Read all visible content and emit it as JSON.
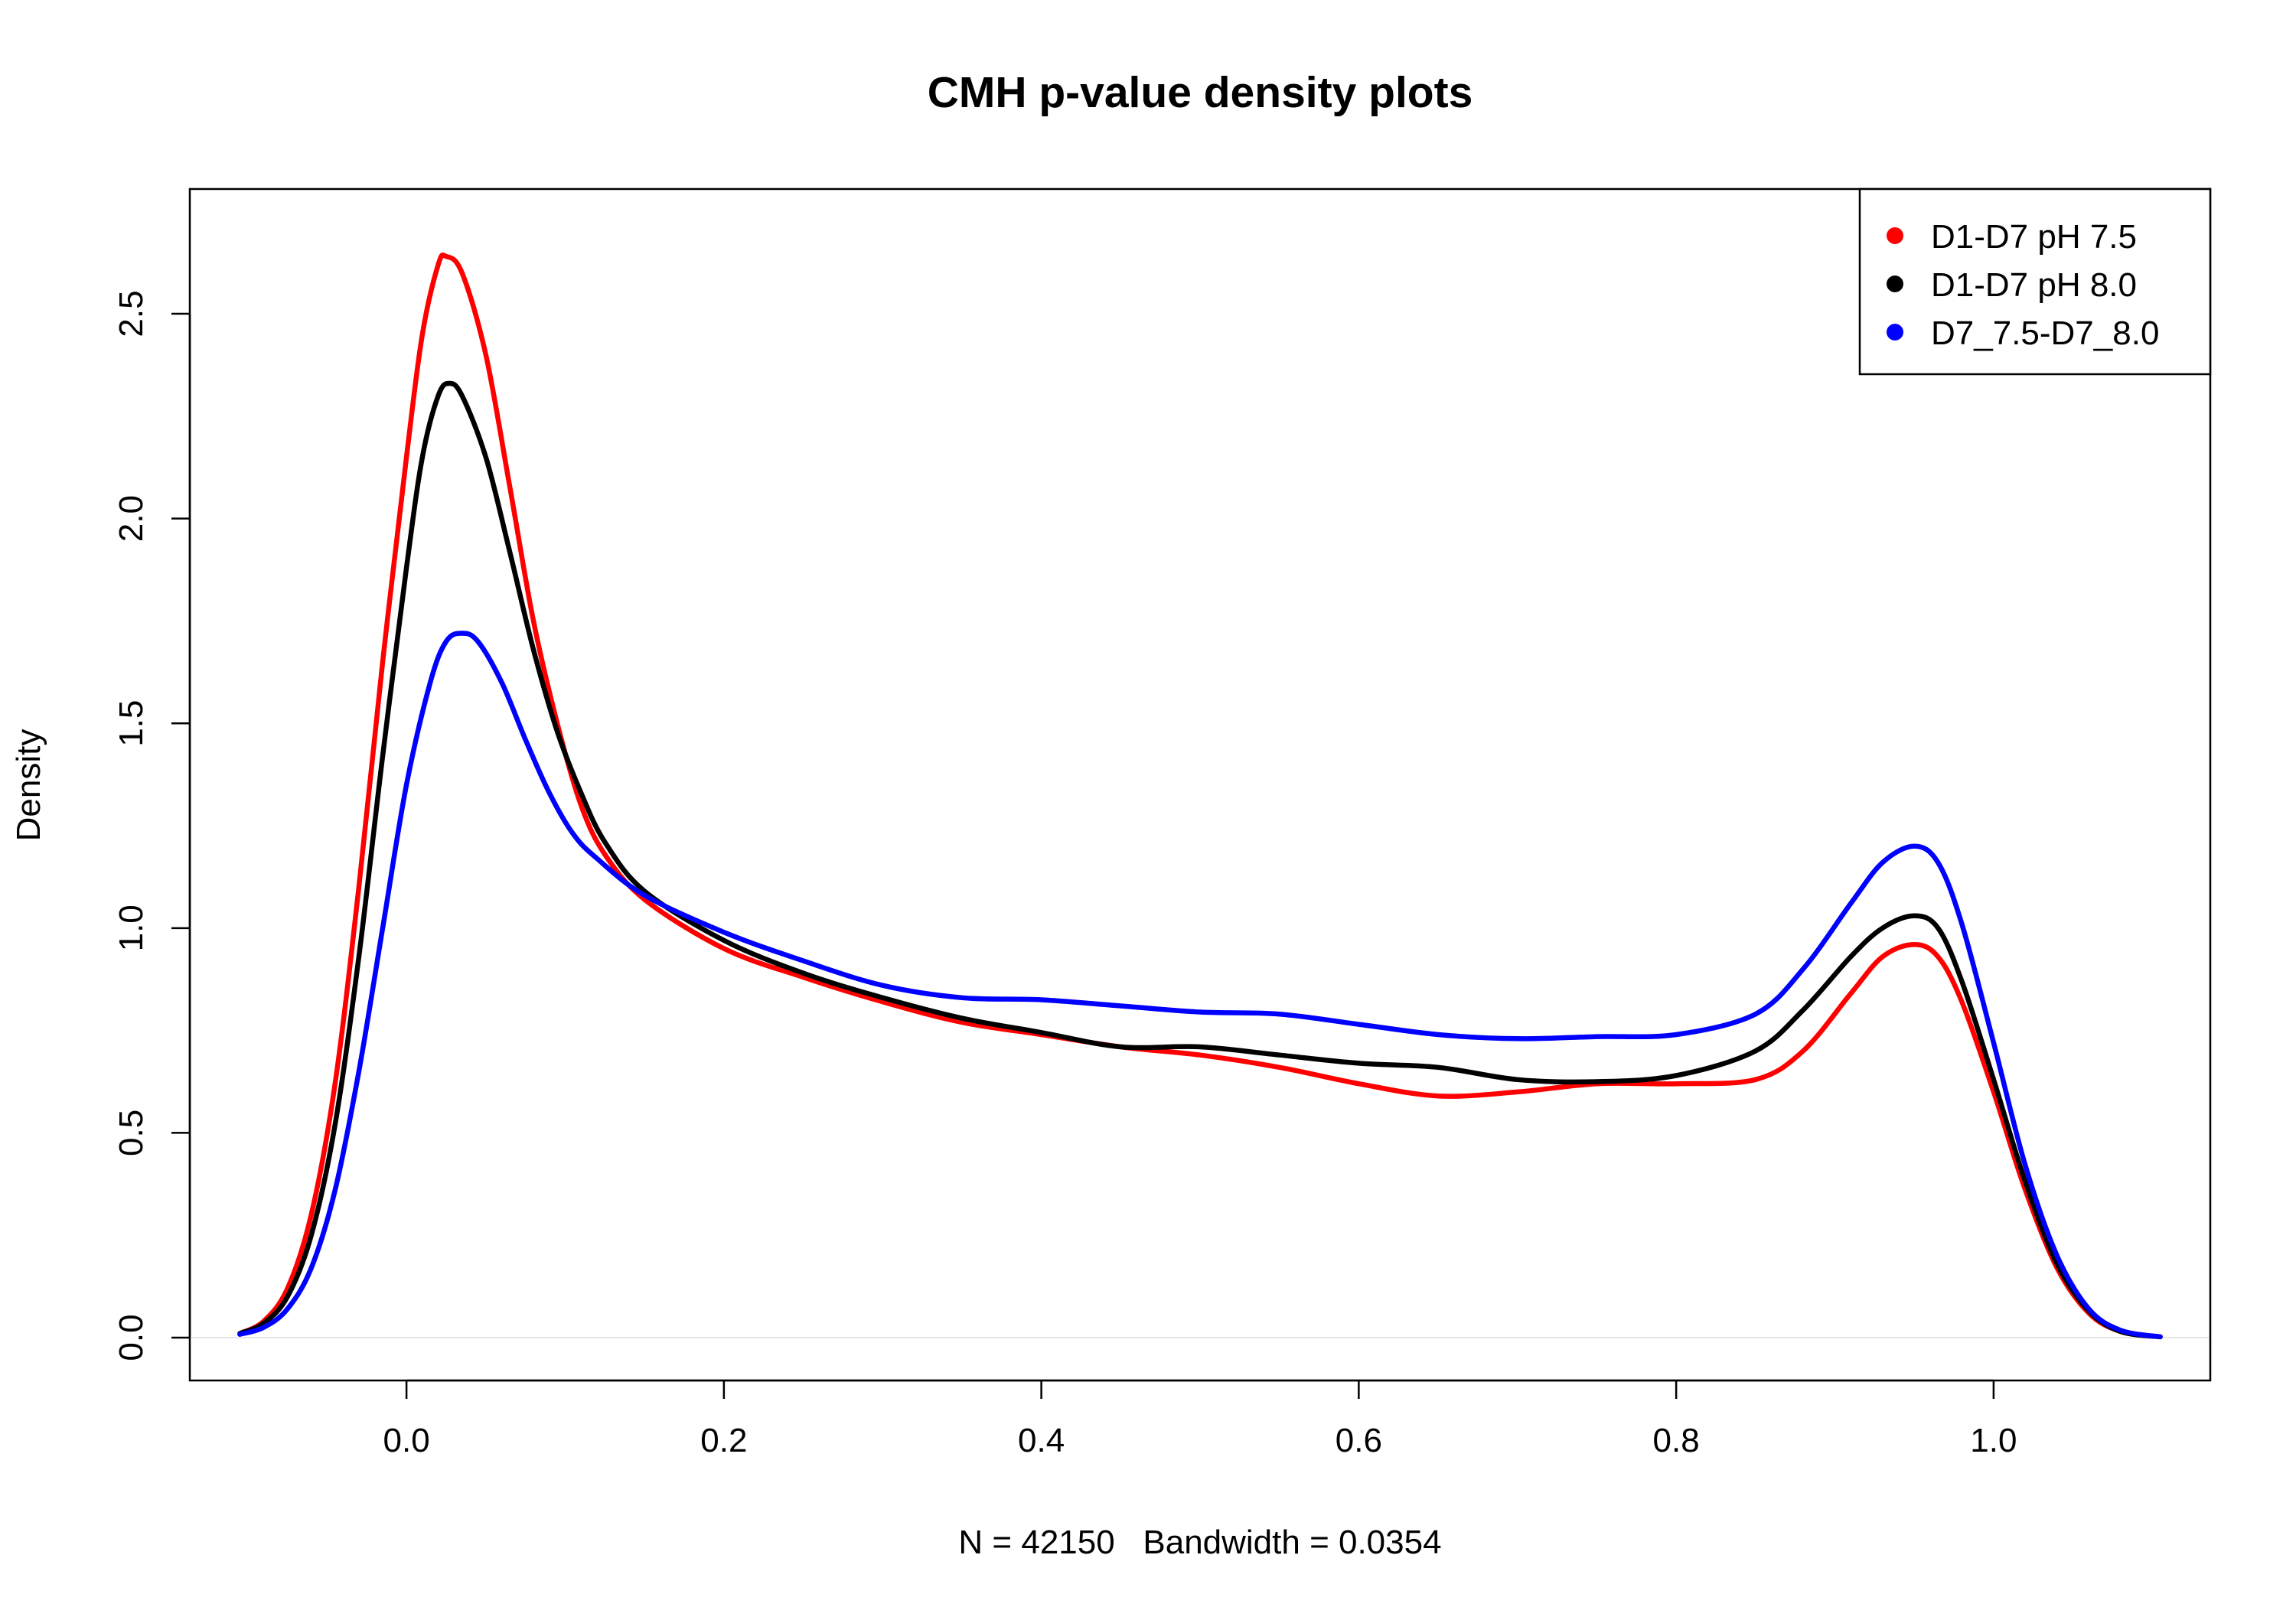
{
  "chart_data": {
    "type": "line",
    "title": "CMH p-value density plots",
    "xlabel": "N = 42150   Bandwidth = 0.0354",
    "ylabel": "Density",
    "xlim": [
      -0.11,
      1.11
    ],
    "ylim": [
      0,
      2.7
    ],
    "x_ticks": [
      0.0,
      0.2,
      0.4,
      0.6,
      0.8,
      1.0
    ],
    "x_tick_labels": [
      "0.0",
      "0.2",
      "0.4",
      "0.6",
      "0.8",
      "1.0"
    ],
    "y_ticks": [
      0.0,
      0.5,
      1.0,
      1.5,
      2.0,
      2.5
    ],
    "y_tick_labels": [
      "0.0",
      "0.5",
      "1.0",
      "1.5",
      "2.0",
      "2.5"
    ],
    "grid": false,
    "baseline_at_zero": true,
    "legend_position": "top-right",
    "series": [
      {
        "name": "D1-D7 pH 7.5",
        "color": "#ff0000",
        "points": [
          [
            -0.105,
            0.01
          ],
          [
            -0.09,
            0.04
          ],
          [
            -0.075,
            0.12
          ],
          [
            -0.06,
            0.3
          ],
          [
            -0.045,
            0.62
          ],
          [
            -0.03,
            1.1
          ],
          [
            -0.015,
            1.65
          ],
          [
            0.0,
            2.15
          ],
          [
            0.01,
            2.45
          ],
          [
            0.02,
            2.62
          ],
          [
            0.025,
            2.64
          ],
          [
            0.035,
            2.6
          ],
          [
            0.05,
            2.4
          ],
          [
            0.065,
            2.08
          ],
          [
            0.08,
            1.75
          ],
          [
            0.095,
            1.5
          ],
          [
            0.11,
            1.3
          ],
          [
            0.125,
            1.18
          ],
          [
            0.15,
            1.07
          ],
          [
            0.2,
            0.95
          ],
          [
            0.25,
            0.88
          ],
          [
            0.3,
            0.82
          ],
          [
            0.35,
            0.77
          ],
          [
            0.4,
            0.74
          ],
          [
            0.45,
            0.71
          ],
          [
            0.5,
            0.69
          ],
          [
            0.55,
            0.66
          ],
          [
            0.6,
            0.62
          ],
          [
            0.65,
            0.59
          ],
          [
            0.7,
            0.6
          ],
          [
            0.75,
            0.62
          ],
          [
            0.8,
            0.62
          ],
          [
            0.85,
            0.63
          ],
          [
            0.88,
            0.7
          ],
          [
            0.91,
            0.84
          ],
          [
            0.93,
            0.93
          ],
          [
            0.95,
            0.96
          ],
          [
            0.965,
            0.93
          ],
          [
            0.98,
            0.82
          ],
          [
            1.0,
            0.6
          ],
          [
            1.02,
            0.36
          ],
          [
            1.04,
            0.17
          ],
          [
            1.06,
            0.06
          ],
          [
            1.08,
            0.015
          ],
          [
            1.105,
            0.002
          ]
        ]
      },
      {
        "name": "D1-D7 pH 8.0",
        "color": "#000000",
        "points": [
          [
            -0.105,
            0.01
          ],
          [
            -0.09,
            0.035
          ],
          [
            -0.075,
            0.1
          ],
          [
            -0.06,
            0.25
          ],
          [
            -0.045,
            0.52
          ],
          [
            -0.03,
            0.93
          ],
          [
            -0.015,
            1.42
          ],
          [
            0.0,
            1.88
          ],
          [
            0.01,
            2.15
          ],
          [
            0.02,
            2.3
          ],
          [
            0.027,
            2.33
          ],
          [
            0.035,
            2.3
          ],
          [
            0.05,
            2.15
          ],
          [
            0.065,
            1.92
          ],
          [
            0.08,
            1.68
          ],
          [
            0.095,
            1.48
          ],
          [
            0.11,
            1.33
          ],
          [
            0.125,
            1.21
          ],
          [
            0.15,
            1.09
          ],
          [
            0.2,
            0.97
          ],
          [
            0.25,
            0.89
          ],
          [
            0.3,
            0.83
          ],
          [
            0.35,
            0.78
          ],
          [
            0.4,
            0.745
          ],
          [
            0.45,
            0.71
          ],
          [
            0.5,
            0.71
          ],
          [
            0.55,
            0.69
          ],
          [
            0.6,
            0.67
          ],
          [
            0.65,
            0.66
          ],
          [
            0.7,
            0.63
          ],
          [
            0.75,
            0.625
          ],
          [
            0.8,
            0.64
          ],
          [
            0.85,
            0.7
          ],
          [
            0.88,
            0.8
          ],
          [
            0.91,
            0.93
          ],
          [
            0.93,
            1.0
          ],
          [
            0.95,
            1.03
          ],
          [
            0.965,
            1.0
          ],
          [
            0.98,
            0.87
          ],
          [
            1.0,
            0.63
          ],
          [
            1.02,
            0.38
          ],
          [
            1.04,
            0.18
          ],
          [
            1.06,
            0.065
          ],
          [
            1.08,
            0.015
          ],
          [
            1.105,
            0.002
          ]
        ]
      },
      {
        "name": "D7_7.5-D7_8.0",
        "color": "#0000ff",
        "points": [
          [
            -0.105,
            0.008
          ],
          [
            -0.09,
            0.025
          ],
          [
            -0.075,
            0.07
          ],
          [
            -0.06,
            0.17
          ],
          [
            -0.045,
            0.36
          ],
          [
            -0.03,
            0.65
          ],
          [
            -0.015,
            1.0
          ],
          [
            0.0,
            1.35
          ],
          [
            0.015,
            1.6
          ],
          [
            0.025,
            1.7
          ],
          [
            0.035,
            1.72
          ],
          [
            0.045,
            1.7
          ],
          [
            0.06,
            1.6
          ],
          [
            0.075,
            1.46
          ],
          [
            0.09,
            1.33
          ],
          [
            0.105,
            1.23
          ],
          [
            0.12,
            1.17
          ],
          [
            0.15,
            1.08
          ],
          [
            0.2,
            0.99
          ],
          [
            0.25,
            0.92
          ],
          [
            0.3,
            0.86
          ],
          [
            0.35,
            0.83
          ],
          [
            0.4,
            0.825
          ],
          [
            0.45,
            0.81
          ],
          [
            0.5,
            0.795
          ],
          [
            0.55,
            0.79
          ],
          [
            0.6,
            0.765
          ],
          [
            0.65,
            0.74
          ],
          [
            0.7,
            0.73
          ],
          [
            0.75,
            0.735
          ],
          [
            0.8,
            0.74
          ],
          [
            0.85,
            0.79
          ],
          [
            0.88,
            0.9
          ],
          [
            0.91,
            1.06
          ],
          [
            0.93,
            1.16
          ],
          [
            0.95,
            1.2
          ],
          [
            0.965,
            1.16
          ],
          [
            0.98,
            1.01
          ],
          [
            1.0,
            0.72
          ],
          [
            1.02,
            0.42
          ],
          [
            1.04,
            0.2
          ],
          [
            1.06,
            0.07
          ],
          [
            1.08,
            0.018
          ],
          [
            1.105,
            0.002
          ]
        ]
      }
    ]
  }
}
